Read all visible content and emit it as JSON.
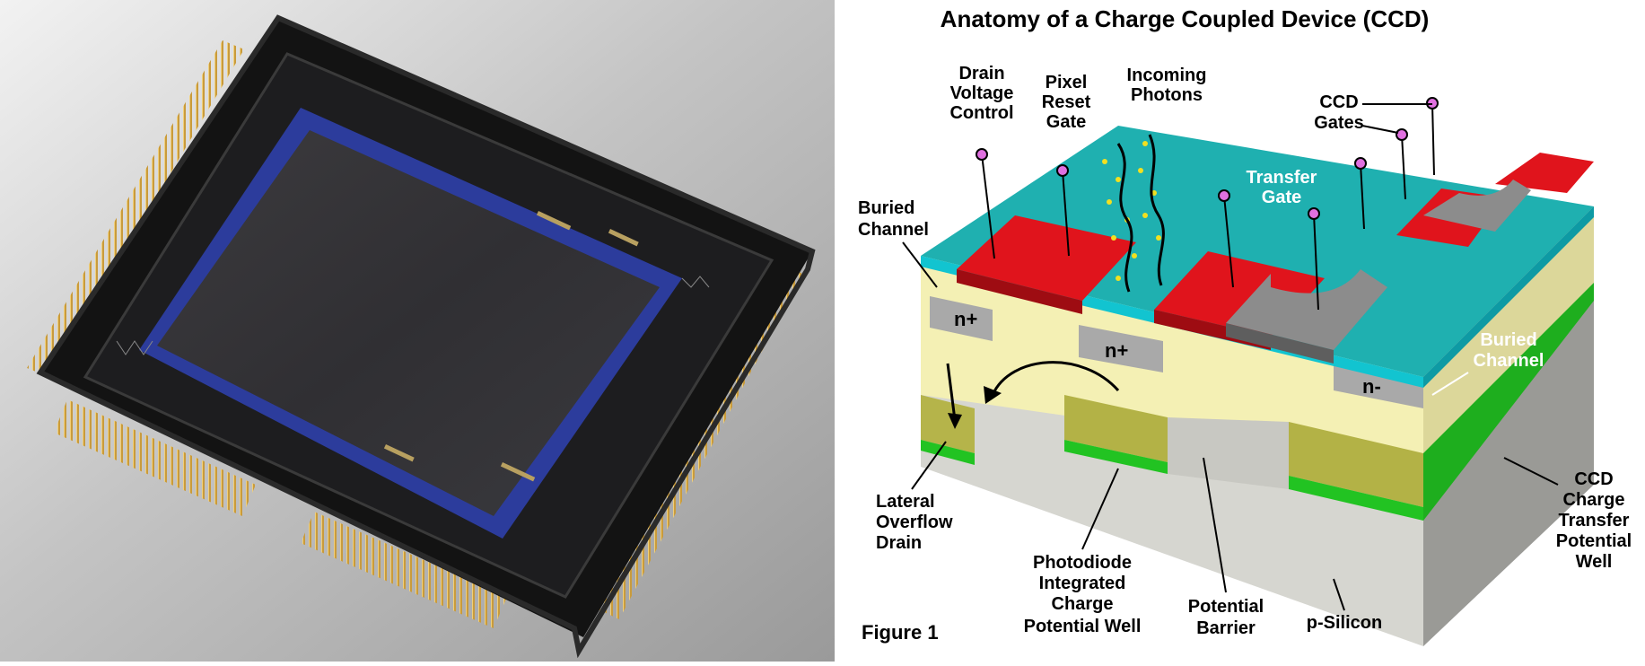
{
  "diagram": {
    "title": "Anatomy of a Charge Coupled Device (CCD)",
    "figure_label": "Figure 1",
    "labels": {
      "drain_voltage_control": [
        "Drain",
        "Voltage",
        "Control"
      ],
      "pixel_reset_gate": [
        "Pixel",
        "Reset",
        "Gate"
      ],
      "incoming_photons": [
        "Incoming",
        "Photons"
      ],
      "ccd_gates": [
        "CCD",
        "Gates"
      ],
      "transfer_gate": [
        "Transfer",
        "Gate"
      ],
      "buried_channel_left": [
        "Buried",
        "Channel"
      ],
      "buried_channel_right": [
        "Buried",
        "Channel"
      ],
      "n_plus_left": "n+",
      "n_plus_center": "n+",
      "n_minus": "n-",
      "lateral_overflow_drain": [
        "Lateral",
        "Overflow",
        "Drain"
      ],
      "photodiode_well": [
        "Photodiode",
        "Integrated",
        "Charge",
        "Potential Well"
      ],
      "potential_barrier": [
        "Potential",
        "Barrier"
      ],
      "p_silicon": "p-Silicon",
      "ccd_transfer_well": [
        "CCD",
        "Charge",
        "Transfer",
        "Potential",
        "Well"
      ]
    }
  },
  "colors": {
    "oxide_teal": "#1fb0b0",
    "gate_red": "#e0141c",
    "gate_gray": "#8c8c8c",
    "silicon_yellow": "#f4f0b8",
    "well_olive": "#b3b246",
    "well_green": "#22c322",
    "substrate_gray": "#d8d8d2",
    "pin_pink": "#e070e0"
  }
}
